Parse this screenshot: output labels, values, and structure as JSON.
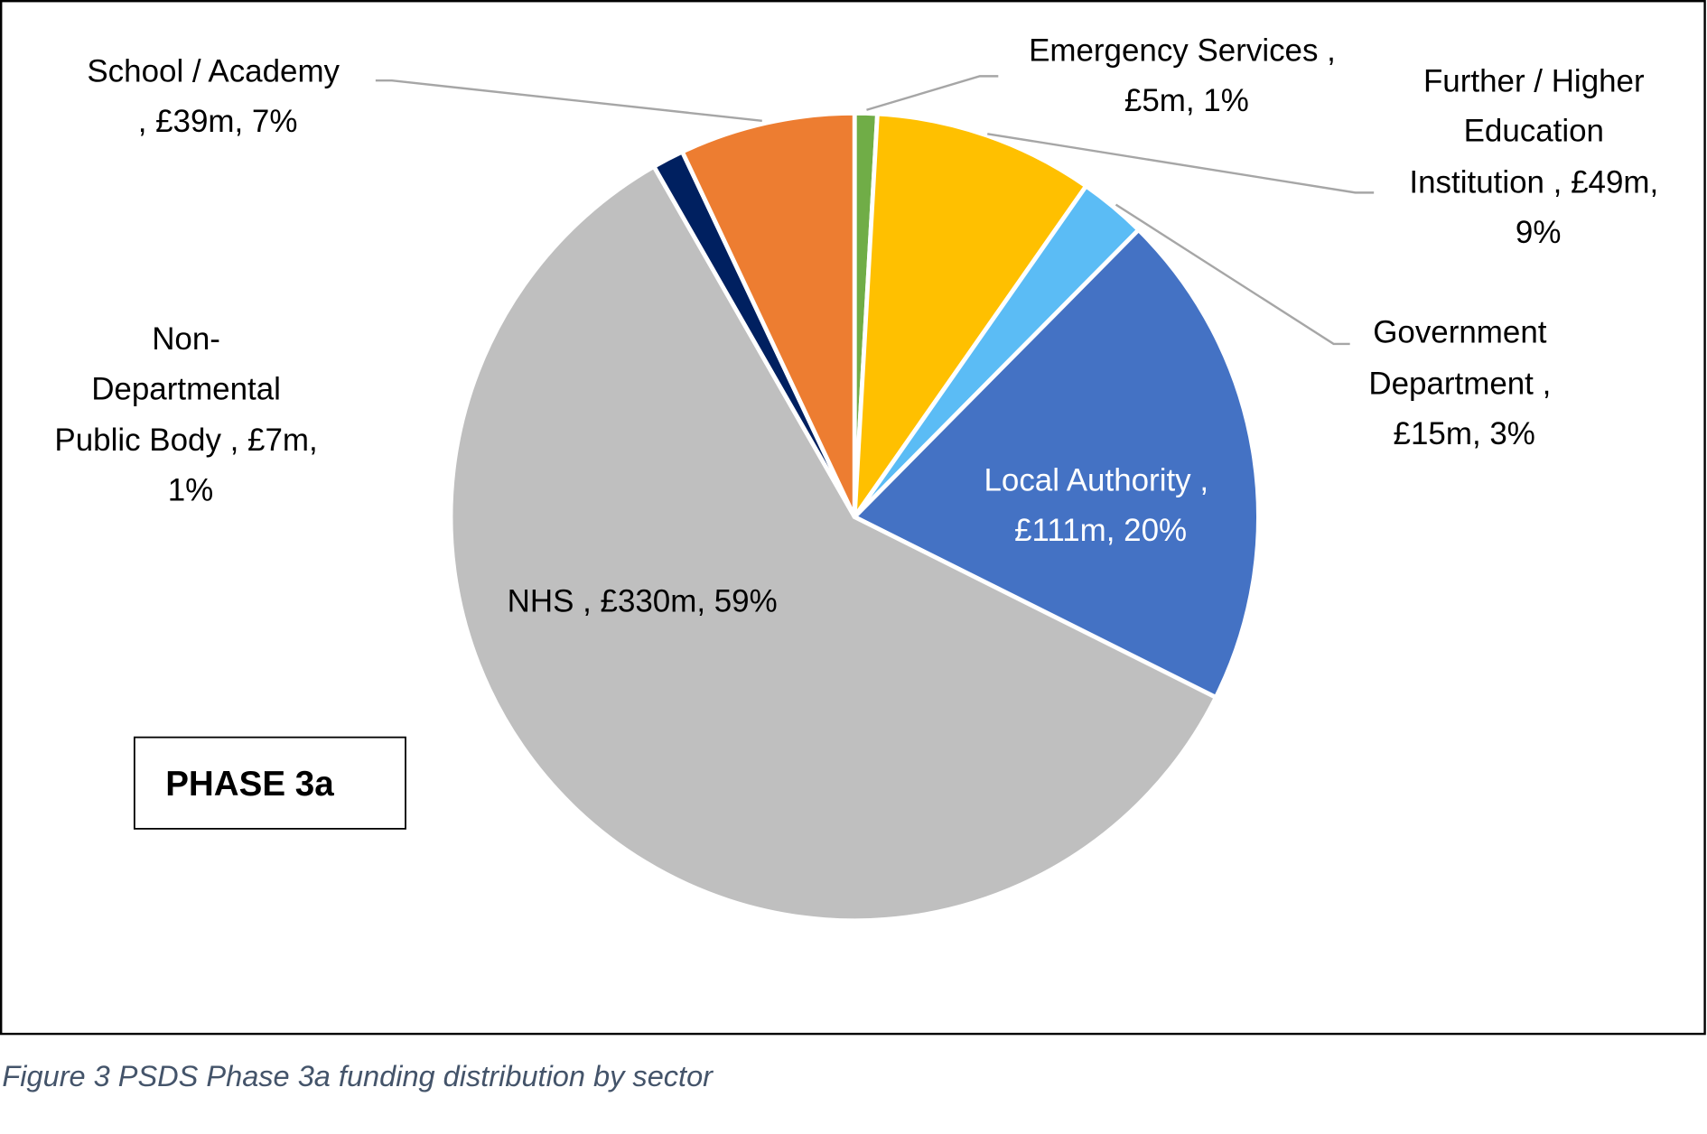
{
  "chart_data": {
    "type": "pie",
    "title": "",
    "start": "12 o'clock, clockwise",
    "unit": "£m",
    "slices": [
      {
        "name": "Emergency Services",
        "value": 5,
        "percent": 1,
        "color": "#70ad47",
        "label_lines": [
          "Emergency Services ,",
          "£5m, 1%"
        ]
      },
      {
        "name": "Further / Higher Education Institution",
        "value": 49,
        "percent": 9,
        "color": "#ffc000",
        "label_lines": [
          "Further / Higher",
          "Education",
          "Institution , £49m,",
          "9%"
        ]
      },
      {
        "name": "Government Department",
        "value": 15,
        "percent": 3,
        "color": "#5bbcf5",
        "label_lines": [
          "Government",
          "Department ,",
          "£15m, 3%"
        ]
      },
      {
        "name": "Local Authority",
        "value": 111,
        "percent": 20,
        "color": "#4472c4",
        "label_lines": [
          "Local Authority ,",
          "£111m, 20%"
        ]
      },
      {
        "name": "NHS",
        "value": 330,
        "percent": 59,
        "color": "#bfbfbf",
        "label_lines": [
          "NHS , £330m, 59%"
        ]
      },
      {
        "name": "Non-Departmental Public Body",
        "value": 7,
        "percent": 1,
        "color": "#002060",
        "label_lines": [
          "Non-",
          "Departmental",
          "Public Body , £7m,",
          "1%"
        ]
      },
      {
        "name": "School / Academy",
        "value": 39,
        "percent": 7,
        "color": "#ed7d31",
        "label_lines": [
          "School / Academy",
          ", £39m, 7%"
        ]
      }
    ]
  },
  "phase_box": "PHASE 3a",
  "caption": "Figure 3 PSDS Phase 3a funding distribution by sector"
}
